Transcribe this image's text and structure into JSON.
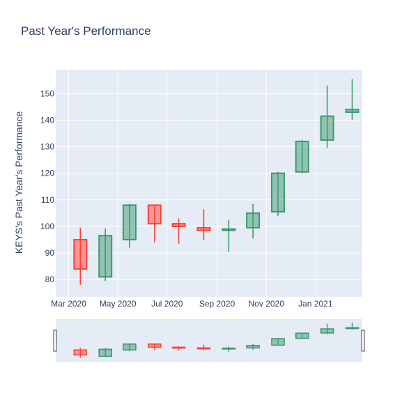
{
  "chart_data": {
    "type": "candlestick",
    "title": "Past Year's Performance",
    "xlabel": "",
    "ylabel": "KEYS's Past Year's Performance",
    "ylim": [
      73.5,
      159
    ],
    "yticks": [
      80,
      90,
      100,
      110,
      120,
      130,
      140,
      150
    ],
    "xticks": [
      "Mar 2020",
      "May 2020",
      "Jul 2020",
      "Sep 2020",
      "Nov 2020",
      "Jan 2021"
    ],
    "grid": true,
    "rangeslider": true,
    "increasing_color": "#3D9970",
    "decreasing_color": "#FF4136",
    "candles": [
      {
        "date": "2020-03",
        "open": 95.0,
        "high": 99.5,
        "low": 78.0,
        "close": 84.0
      },
      {
        "date": "2020-04",
        "open": 81.0,
        "high": 99.2,
        "low": 79.5,
        "close": 96.5
      },
      {
        "date": "2020-05",
        "open": 95.0,
        "high": 108.5,
        "low": 92.0,
        "close": 108.0
      },
      {
        "date": "2020-06",
        "open": 108.0,
        "high": 108.0,
        "low": 94.0,
        "close": 101.0
      },
      {
        "date": "2020-07",
        "open": 101.0,
        "high": 103.0,
        "low": 93.5,
        "close": 100.0
      },
      {
        "date": "2020-08",
        "open": 99.5,
        "high": 106.5,
        "low": 95.0,
        "close": 98.5
      },
      {
        "date": "2020-09",
        "open": 98.5,
        "high": 102.5,
        "low": 90.5,
        "close": 99.0
      },
      {
        "date": "2020-10",
        "open": 99.5,
        "high": 108.5,
        "low": 95.5,
        "close": 105.0
      },
      {
        "date": "2020-11",
        "open": 105.5,
        "high": 120.5,
        "low": 104.0,
        "close": 120.0
      },
      {
        "date": "2020-12",
        "open": 120.5,
        "high": 132.5,
        "low": 120.0,
        "close": 132.0
      },
      {
        "date": "2021-01",
        "open": 132.5,
        "high": 153.0,
        "low": 129.5,
        "close": 141.5
      },
      {
        "date": "2021-02",
        "open": 143.0,
        "high": 155.5,
        "low": 140.0,
        "close": 144.0
      }
    ]
  }
}
